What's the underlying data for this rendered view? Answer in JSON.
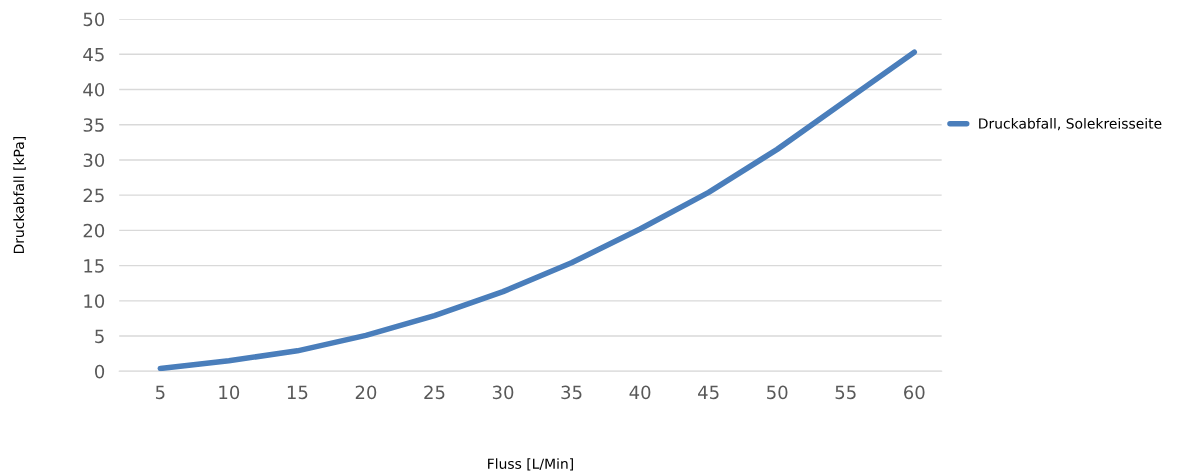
{
  "chart_data": {
    "type": "line",
    "xlabel": "Fluss [L/Min]",
    "ylabel": "Druckabfall [kPa]",
    "categories": [
      "5",
      "10",
      "15",
      "20",
      "25",
      "30",
      "35",
      "40",
      "45",
      "50",
      "55",
      "60"
    ],
    "series": [
      {
        "name": "Druckabfall, Solekreisseite",
        "color": "#4a7ebb",
        "values": [
          0.4,
          1.5,
          2.9,
          5.1,
          7.9,
          11.3,
          15.4,
          20.2,
          25.4,
          31.5,
          38.4,
          45.3
        ]
      }
    ],
    "ylim": [
      0,
      50
    ],
    "yticks": [
      0,
      5,
      10,
      15,
      20,
      25,
      30,
      35,
      40,
      45,
      50
    ],
    "grid": "y",
    "legend": "right",
    "marker": "none",
    "line_style": "solid"
  }
}
